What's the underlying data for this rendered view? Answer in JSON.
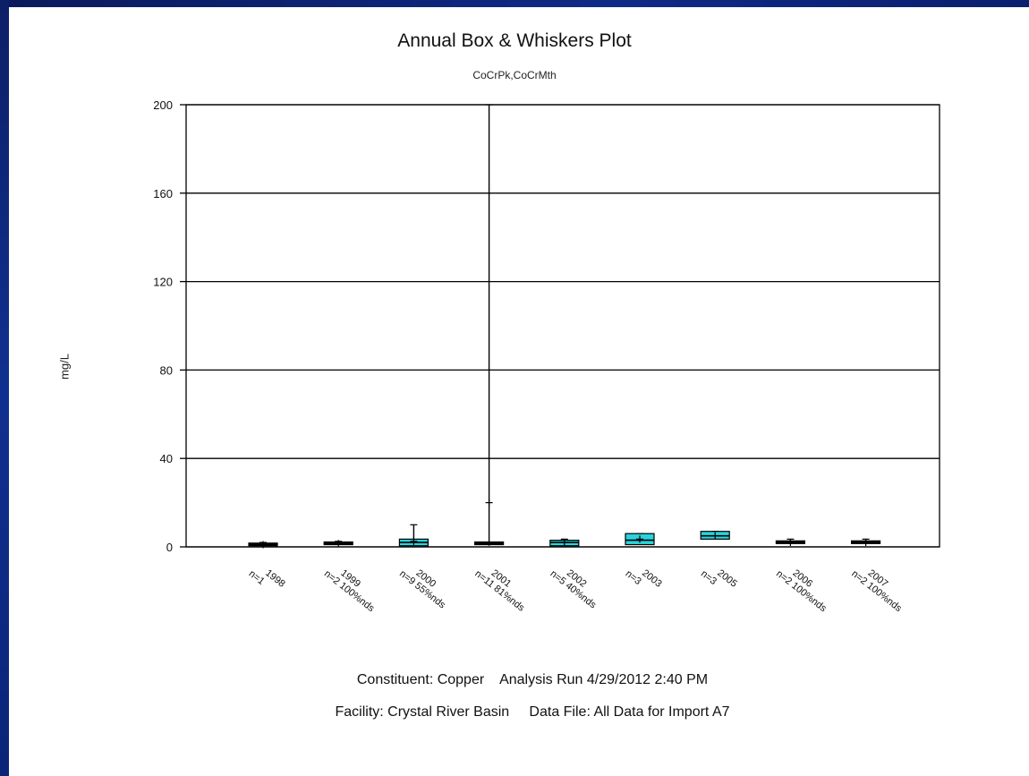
{
  "chart_data": {
    "type": "box",
    "title": "Annual Box & Whiskers Plot",
    "subtitle": "CoCrPk,CoCrMth",
    "ylabel": "mg/L",
    "ylim": [
      0,
      200
    ],
    "yticks": [
      0,
      40,
      80,
      120,
      160,
      200
    ],
    "grid": "horizontal",
    "categories": [
      {
        "year": "1998",
        "note": "n=1"
      },
      {
        "year": "1999",
        "note": "n=2 100%nds"
      },
      {
        "year": "2000",
        "note": "n=9 55%nds"
      },
      {
        "year": "2001",
        "note": "n=11 81%nds"
      },
      {
        "year": "2002",
        "note": "n=5 40%nds"
      },
      {
        "year": "2003",
        "note": "n=3"
      },
      {
        "year": "2005",
        "note": "n=3"
      },
      {
        "year": "2006",
        "note": "n=2 100%nds"
      },
      {
        "year": "2007",
        "note": "n=2 100%nds"
      }
    ],
    "boxes": [
      {
        "whisker_low": 0.5,
        "q1": 0.5,
        "median": 1.0,
        "q3": 1.5,
        "whisker_high": 2.0,
        "mean": 1.0,
        "fill": "#1a1a1a"
      },
      {
        "whisker_low": 1.0,
        "q1": 1.0,
        "median": 1.5,
        "q3": 2.0,
        "whisker_high": 2.5,
        "mean": 1.5,
        "fill": "#1a1a1a"
      },
      {
        "whisker_low": 0.5,
        "q1": 0.5,
        "median": 2.0,
        "q3": 3.5,
        "whisker_high": 10.0,
        "mean": 2.5,
        "fill": "#29d3de"
      },
      {
        "whisker_low": 0.5,
        "q1": 1.0,
        "median": 1.5,
        "q3": 2.0,
        "whisker_high": 200.0,
        "mean": 20.0,
        "fill": "#1a1a1a"
      },
      {
        "whisker_low": 0.5,
        "q1": 0.5,
        "median": 2.0,
        "q3": 3.0,
        "whisker_high": 3.5,
        "mean": 2.0,
        "fill": "#29d3de"
      },
      {
        "whisker_low": 1.0,
        "q1": 1.0,
        "median": 3.0,
        "q3": 6.0,
        "whisker_high": 6.0,
        "mean": 3.5,
        "fill": "#29d3de"
      },
      {
        "whisker_low": 3.5,
        "q1": 3.5,
        "median": 5.0,
        "q3": 7.0,
        "whisker_high": 7.0,
        "mean": 5.0,
        "fill": "#29d3de"
      },
      {
        "whisker_low": 1.5,
        "q1": 1.5,
        "median": 2.0,
        "q3": 2.5,
        "whisker_high": 3.5,
        "mean": 2.0,
        "fill": "#1a1a1a"
      },
      {
        "whisker_low": 1.5,
        "q1": 1.5,
        "median": 2.0,
        "q3": 2.5,
        "whisker_high": 3.5,
        "mean": 2.0,
        "fill": "#1a1a1a"
      }
    ]
  },
  "footer": {
    "line1": "Constituent: Copper    Analysis Run 4/29/2012 2:40 PM",
    "line2": "Facility: Crystal River Basin     Data File: All Data for Import A7"
  },
  "colors": {
    "box_fill": "#29d3de",
    "frame": "#0f2a86"
  }
}
